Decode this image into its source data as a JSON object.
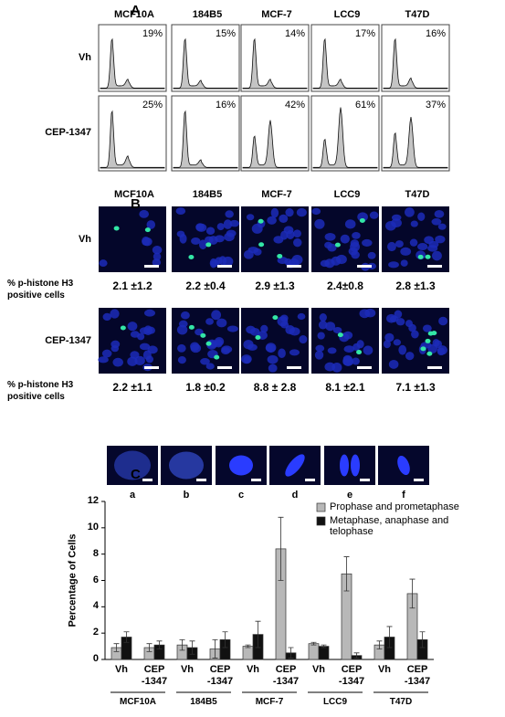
{
  "panel_a": {
    "label": "A",
    "cell_lines": [
      "MCF10A",
      "184B5",
      "MCF-7",
      "LCC9",
      "T47D"
    ],
    "rows": [
      {
        "label": "Vh",
        "percentages": [
          "19%",
          "15%",
          "14%",
          "17%",
          "16%"
        ]
      },
      {
        "label": "CEP-1347",
        "percentages": [
          "25%",
          "16%",
          "42%",
          "61%",
          "37%"
        ]
      }
    ]
  },
  "panel_b": {
    "label": "B",
    "cell_lines": [
      "MCF10A",
      "184B5",
      "MCF-7",
      "LCC9",
      "T47D"
    ],
    "rows": [
      {
        "label": "Vh",
        "measure": "% p-histone H3 positive cells",
        "values": [
          "2.1 ±1.2",
          "2.2 ±0.4",
          "2.9 ±1.3",
          "2.4±0.8",
          "2.8 ±1.3"
        ]
      },
      {
        "label": "CEP-1347",
        "measure": "% p-histone H3 positive cells",
        "values": [
          "2.2 ±1.1",
          "1.8 ±0.2",
          "8.8 ± 2.8",
          "8.1 ±2.1",
          "7.1 ±1.3"
        ]
      }
    ]
  },
  "panel_c": {
    "label": "C",
    "image_labels": [
      "a",
      "b",
      "c",
      "d",
      "e",
      "f"
    ]
  },
  "chart_data": {
    "type": "bar",
    "y_label": "Percentage of Cells",
    "categories": [
      "Vh",
      "CEP\n-1347",
      "Vh",
      "CEP\n-1347",
      "Vh",
      "CEP\n-1347",
      "Vh",
      "CEP\n-1347",
      "Vh",
      "CEP\n-1347"
    ],
    "groups": [
      "MCF10A",
      "184B5",
      "MCF-7",
      "LCC9",
      "T47D"
    ],
    "series": [
      {
        "name": "Prophase and prometaphase",
        "color": "#b8b8b8",
        "values": [
          0.9,
          0.9,
          1.1,
          0.8,
          1.0,
          8.4,
          1.2,
          6.5,
          1.1,
          5.0
        ],
        "errors": [
          0.3,
          0.3,
          0.4,
          0.7,
          0.1,
          2.4,
          0.1,
          1.3,
          0.3,
          1.1
        ]
      },
      {
        "name": "Metaphase, anaphase and telophase",
        "color": "#111111",
        "values": [
          1.7,
          1.1,
          0.9,
          1.5,
          1.9,
          0.5,
          1.0,
          0.3,
          1.7,
          1.5
        ],
        "errors": [
          0.4,
          0.3,
          0.5,
          0.6,
          1.0,
          0.4,
          0.1,
          0.2,
          0.8,
          0.6
        ]
      }
    ],
    "ylim": [
      0,
      12
    ],
    "yticks": [
      0,
      2,
      4,
      6,
      8,
      10,
      12
    ],
    "legend": "top-right"
  }
}
